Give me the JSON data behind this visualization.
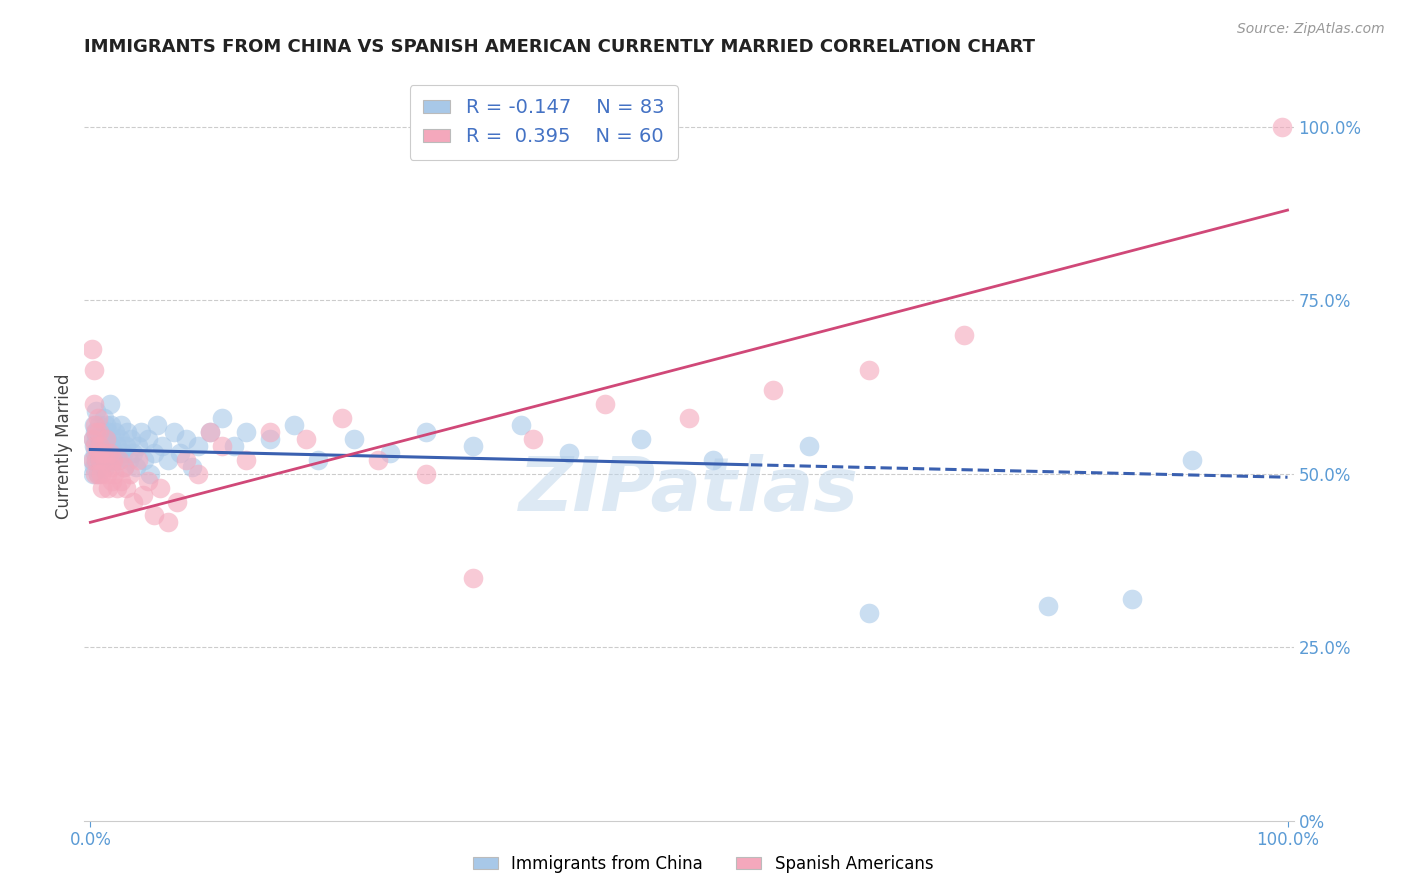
{
  "title": "IMMIGRANTS FROM CHINA VS SPANISH AMERICAN CURRENTLY MARRIED CORRELATION CHART",
  "source": "Source: ZipAtlas.com",
  "ylabel": "Currently Married",
  "blue_R": -0.147,
  "blue_N": 83,
  "pink_R": 0.395,
  "pink_N": 60,
  "blue_color": "#a8c8e8",
  "pink_color": "#f4a8bc",
  "blue_line_color": "#3a60b0",
  "pink_line_color": "#d04878",
  "watermark": "ZIPatlas",
  "legend_label_blue": "Immigrants from China",
  "legend_label_pink": "Spanish Americans",
  "axis_label_color": "#5b9bd5",
  "grid_color": "#cccccc",
  "title_color": "#222222",
  "source_color": "#999999",
  "blue_x": [
    0.001,
    0.002,
    0.002,
    0.003,
    0.003,
    0.003,
    0.004,
    0.004,
    0.005,
    0.005,
    0.005,
    0.006,
    0.006,
    0.007,
    0.007,
    0.008,
    0.008,
    0.009,
    0.009,
    0.01,
    0.01,
    0.011,
    0.011,
    0.012,
    0.012,
    0.013,
    0.013,
    0.014,
    0.015,
    0.015,
    0.016,
    0.017,
    0.017,
    0.018,
    0.019,
    0.02,
    0.021,
    0.022,
    0.023,
    0.025,
    0.026,
    0.027,
    0.028,
    0.03,
    0.031,
    0.032,
    0.034,
    0.036,
    0.038,
    0.04,
    0.042,
    0.045,
    0.048,
    0.05,
    0.053,
    0.056,
    0.06,
    0.065,
    0.07,
    0.075,
    0.08,
    0.085,
    0.09,
    0.1,
    0.11,
    0.12,
    0.13,
    0.15,
    0.17,
    0.19,
    0.22,
    0.25,
    0.28,
    0.32,
    0.36,
    0.4,
    0.46,
    0.52,
    0.6,
    0.65,
    0.8,
    0.87,
    0.92
  ],
  "blue_y": [
    0.52,
    0.55,
    0.5,
    0.54,
    0.57,
    0.51,
    0.53,
    0.56,
    0.52,
    0.55,
    0.59,
    0.5,
    0.54,
    0.53,
    0.57,
    0.52,
    0.55,
    0.51,
    0.54,
    0.53,
    0.56,
    0.52,
    0.58,
    0.54,
    0.51,
    0.55,
    0.57,
    0.53,
    0.52,
    0.56,
    0.6,
    0.54,
    0.57,
    0.55,
    0.52,
    0.53,
    0.56,
    0.54,
    0.52,
    0.55,
    0.57,
    0.53,
    0.51,
    0.54,
    0.56,
    0.52,
    0.55,
    0.53,
    0.51,
    0.54,
    0.56,
    0.52,
    0.55,
    0.5,
    0.53,
    0.57,
    0.54,
    0.52,
    0.56,
    0.53,
    0.55,
    0.51,
    0.54,
    0.56,
    0.58,
    0.54,
    0.56,
    0.55,
    0.57,
    0.52,
    0.55,
    0.53,
    0.56,
    0.54,
    0.57,
    0.53,
    0.55,
    0.52,
    0.54,
    0.3,
    0.31,
    0.32,
    0.52
  ],
  "pink_x": [
    0.001,
    0.002,
    0.002,
    0.003,
    0.003,
    0.004,
    0.004,
    0.004,
    0.005,
    0.005,
    0.006,
    0.006,
    0.007,
    0.007,
    0.008,
    0.008,
    0.009,
    0.01,
    0.011,
    0.012,
    0.013,
    0.014,
    0.015,
    0.016,
    0.017,
    0.018,
    0.019,
    0.02,
    0.022,
    0.024,
    0.026,
    0.028,
    0.03,
    0.033,
    0.036,
    0.04,
    0.044,
    0.048,
    0.053,
    0.058,
    0.065,
    0.072,
    0.08,
    0.09,
    0.1,
    0.11,
    0.13,
    0.15,
    0.18,
    0.21,
    0.24,
    0.28,
    0.32,
    0.37,
    0.43,
    0.5,
    0.57,
    0.65,
    0.73,
    0.995
  ],
  "pink_y": [
    0.68,
    0.52,
    0.55,
    0.65,
    0.6,
    0.57,
    0.5,
    0.54,
    0.52,
    0.56,
    0.5,
    0.58,
    0.53,
    0.56,
    0.52,
    0.54,
    0.5,
    0.48,
    0.53,
    0.52,
    0.55,
    0.5,
    0.48,
    0.53,
    0.51,
    0.49,
    0.52,
    0.5,
    0.48,
    0.52,
    0.49,
    0.51,
    0.48,
    0.5,
    0.46,
    0.52,
    0.47,
    0.49,
    0.44,
    0.48,
    0.43,
    0.46,
    0.52,
    0.5,
    0.56,
    0.54,
    0.52,
    0.56,
    0.55,
    0.58,
    0.52,
    0.5,
    0.35,
    0.55,
    0.6,
    0.58,
    0.62,
    0.65,
    0.7,
    1.0
  ]
}
